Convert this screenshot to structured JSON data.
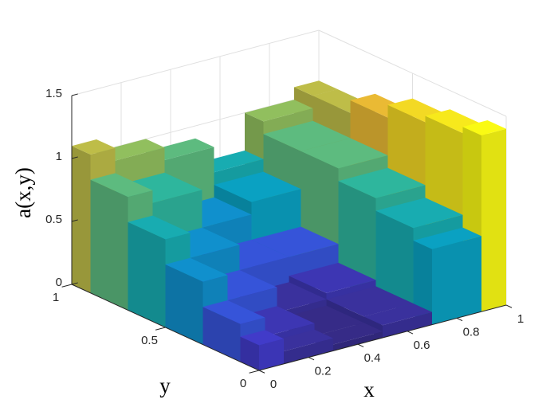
{
  "chart_data": {
    "type": "surface",
    "x_label": "x",
    "y_label": "y",
    "z_label": "a(x,y)",
    "x": [
      0,
      0.2,
      0.4,
      0.6,
      0.8,
      1
    ],
    "y": [
      0,
      0.2,
      0.4,
      0.6,
      0.8,
      1
    ],
    "z": [
      [
        0.2,
        0.1,
        0.05,
        0.1,
        0.6,
        1.4
      ],
      [
        0.3,
        0.15,
        0.05,
        0.1,
        0.7,
        1.35
      ],
      [
        0.5,
        0.3,
        0.1,
        0.15,
        0.8,
        1.3
      ],
      [
        0.7,
        0.5,
        0.3,
        0.3,
        0.9,
        1.2
      ],
      [
        0.9,
        0.8,
        0.5,
        0.6,
        0.9,
        1.1
      ],
      [
        1.1,
        1.0,
        0.9,
        0.7,
        1.0,
        1.1
      ]
    ],
    "xlim": [
      0,
      1
    ],
    "ylim": [
      0,
      1
    ],
    "zlim": [
      0,
      1.5
    ],
    "xticks": [
      0,
      0.2,
      0.4,
      0.6,
      0.8,
      1
    ],
    "yticks": [
      0,
      0.5,
      1
    ],
    "zticks": [
      0,
      0.5,
      1,
      1.5
    ],
    "grid": true,
    "colormap": "parula"
  }
}
